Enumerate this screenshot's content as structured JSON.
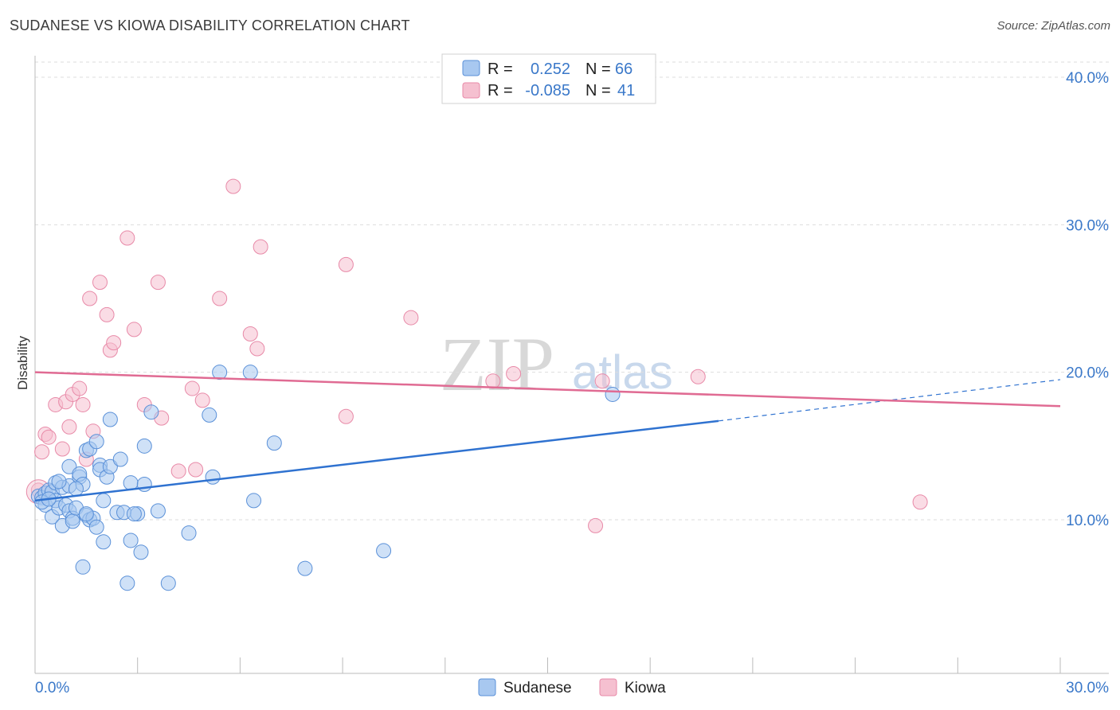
{
  "header": {
    "title": "SUDANESE VS KIOWA DISABILITY CORRELATION CHART",
    "source": "Source: ZipAtlas.com"
  },
  "watermark": {
    "zip": "ZIP",
    "atlas": "atlas"
  },
  "legend": {
    "rows": [
      {
        "r_label": "R =",
        "r_value": "0.252",
        "n_label": "N =",
        "n_value": "66",
        "color": "#a8c8f0"
      },
      {
        "r_label": "R =",
        "r_value": "-0.085",
        "n_label": "N =",
        "n_value": "41",
        "color": "#f5b8cc"
      }
    ]
  },
  "bottom_legend": {
    "series1": "Sudanese",
    "series2": "Kiowa"
  },
  "colors": {
    "sudanese_fill": "#a8c8f0",
    "sudanese_stroke": "#5a90d8",
    "sudanese_line": "#2f72d0",
    "kiowa_fill": "#f5c0d0",
    "kiowa_stroke": "#e88aa8",
    "kiowa_line": "#e06b93",
    "axis_label": "#3a78c9",
    "grid": "#dddddd"
  },
  "chart_data": {
    "type": "scatter",
    "title": "SUDANESE VS KIOWA DISABILITY CORRELATION CHART",
    "xlabel": "",
    "ylabel": "Disability",
    "xlim": [
      0,
      30
    ],
    "ylim": [
      0,
      42
    ],
    "x_tick_labels": [
      "0.0%",
      "30.0%"
    ],
    "y_ticks": [
      10,
      20,
      30,
      40
    ],
    "y_tick_labels": [
      "10.0%",
      "20.0%",
      "30.0%",
      "40.0%"
    ],
    "grid": true,
    "legend_position": "top-center",
    "series": [
      {
        "name": "Sudanese",
        "r": 0.252,
        "n": 66,
        "trend": {
          "x0": 0,
          "y0": 11.3,
          "x1": 20,
          "y1": 16.7,
          "dashed_to_x": 30,
          "dashed_to_y": 19.5
        },
        "points": [
          [
            0.1,
            11.6
          ],
          [
            0.2,
            11.5
          ],
          [
            0.3,
            11.8
          ],
          [
            0.3,
            11.0
          ],
          [
            0.4,
            12.0
          ],
          [
            0.5,
            11.9
          ],
          [
            0.5,
            10.2
          ],
          [
            0.6,
            12.5
          ],
          [
            0.6,
            11.3
          ],
          [
            0.7,
            10.8
          ],
          [
            0.8,
            9.6
          ],
          [
            0.8,
            12.2
          ],
          [
            0.9,
            11.0
          ],
          [
            1.0,
            13.6
          ],
          [
            1.0,
            12.3
          ],
          [
            1.0,
            10.6
          ],
          [
            1.1,
            10.1
          ],
          [
            1.1,
            9.9
          ],
          [
            1.2,
            10.8
          ],
          [
            1.3,
            12.9
          ],
          [
            1.3,
            13.1
          ],
          [
            1.4,
            12.4
          ],
          [
            1.4,
            6.8
          ],
          [
            1.5,
            14.7
          ],
          [
            1.5,
            10.3
          ],
          [
            1.6,
            14.8
          ],
          [
            1.6,
            10.0
          ],
          [
            1.7,
            10.1
          ],
          [
            1.8,
            9.5
          ],
          [
            1.8,
            15.3
          ],
          [
            1.9,
            13.7
          ],
          [
            1.9,
            13.4
          ],
          [
            2.0,
            11.3
          ],
          [
            2.0,
            8.5
          ],
          [
            2.1,
            12.9
          ],
          [
            2.2,
            13.6
          ],
          [
            2.2,
            16.8
          ],
          [
            2.4,
            10.5
          ],
          [
            2.5,
            14.1
          ],
          [
            2.6,
            10.5
          ],
          [
            2.7,
            5.7
          ],
          [
            2.8,
            12.5
          ],
          [
            2.8,
            8.6
          ],
          [
            3.0,
            10.4
          ],
          [
            3.1,
            7.8
          ],
          [
            3.2,
            15.0
          ],
          [
            3.2,
            12.4
          ],
          [
            3.4,
            17.3
          ],
          [
            3.6,
            10.6
          ],
          [
            3.9,
            5.7
          ],
          [
            4.5,
            9.1
          ],
          [
            5.1,
            17.1
          ],
          [
            5.2,
            12.9
          ],
          [
            5.4,
            20.0
          ],
          [
            6.4,
            11.3
          ],
          [
            6.3,
            20.0
          ],
          [
            7.0,
            15.2
          ],
          [
            7.9,
            6.7
          ],
          [
            10.2,
            7.9
          ],
          [
            16.9,
            18.5
          ],
          [
            0.2,
            11.2
          ],
          [
            0.4,
            11.4
          ],
          [
            0.7,
            12.6
          ],
          [
            1.2,
            12.1
          ],
          [
            2.9,
            10.4
          ],
          [
            1.5,
            10.4
          ]
        ]
      },
      {
        "name": "Kiowa",
        "r": -0.085,
        "n": 41,
        "trend": {
          "x0": 0,
          "y0": 20.0,
          "x1": 30,
          "y1": 17.7
        },
        "points": [
          [
            0.1,
            12.0
          ],
          [
            0.2,
            14.6
          ],
          [
            0.3,
            15.8
          ],
          [
            0.4,
            15.6
          ],
          [
            0.6,
            17.8
          ],
          [
            0.8,
            14.8
          ],
          [
            0.9,
            18.0
          ],
          [
            1.0,
            16.3
          ],
          [
            1.1,
            18.5
          ],
          [
            1.3,
            18.9
          ],
          [
            1.4,
            17.8
          ],
          [
            1.5,
            14.1
          ],
          [
            1.6,
            25.0
          ],
          [
            1.7,
            16.0
          ],
          [
            1.9,
            26.1
          ],
          [
            2.1,
            23.9
          ],
          [
            2.2,
            21.5
          ],
          [
            2.3,
            22.0
          ],
          [
            2.7,
            29.1
          ],
          [
            2.9,
            22.9
          ],
          [
            3.2,
            17.8
          ],
          [
            3.6,
            26.1
          ],
          [
            3.7,
            16.9
          ],
          [
            4.2,
            13.3
          ],
          [
            4.6,
            18.9
          ],
          [
            4.7,
            13.4
          ],
          [
            4.9,
            18.1
          ],
          [
            5.4,
            25.0
          ],
          [
            5.8,
            32.6
          ],
          [
            6.3,
            22.6
          ],
          [
            6.5,
            21.6
          ],
          [
            6.6,
            28.5
          ],
          [
            9.1,
            17.0
          ],
          [
            9.1,
            27.3
          ],
          [
            11.0,
            23.7
          ],
          [
            13.4,
            19.4
          ],
          [
            14.0,
            19.9
          ],
          [
            16.4,
            9.6
          ],
          [
            16.6,
            19.4
          ],
          [
            19.4,
            19.7
          ],
          [
            25.9,
            11.2
          ]
        ]
      }
    ]
  }
}
